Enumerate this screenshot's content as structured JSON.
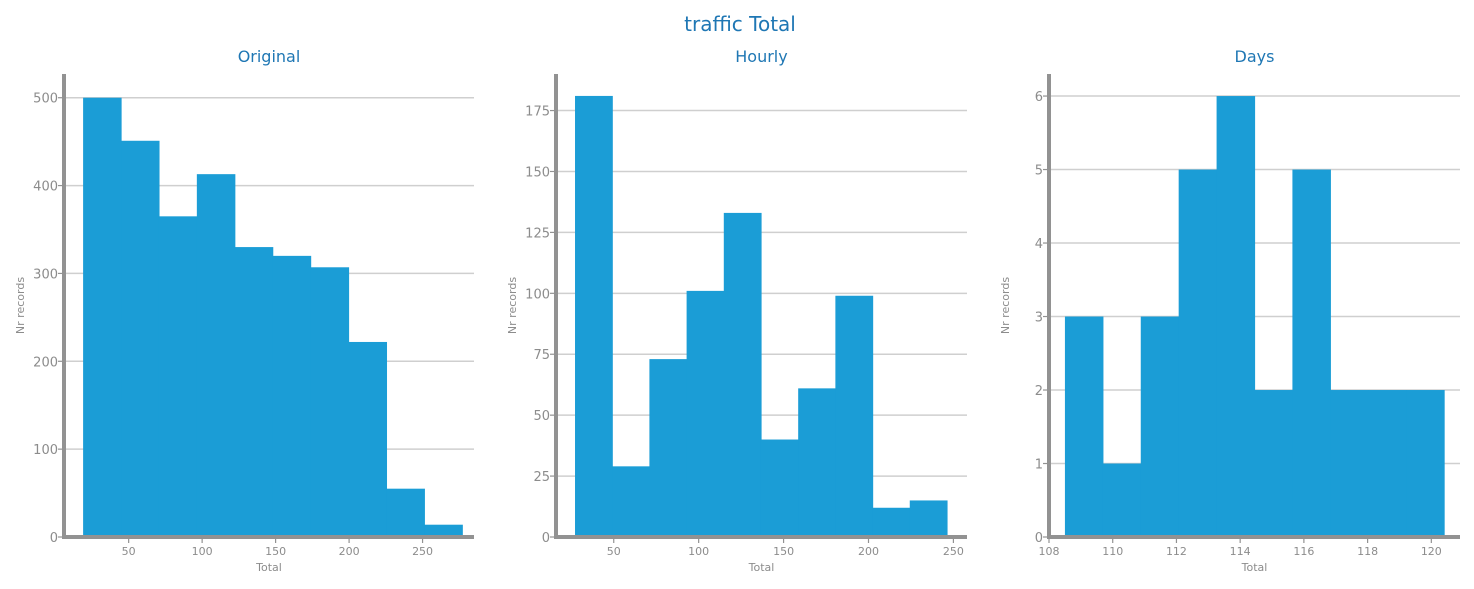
{
  "figure": {
    "title": "traffic Total"
  },
  "colors": {
    "bar": "#1b9dd6",
    "title": "#1f77b4",
    "axis": "#929292",
    "grid": "#cfcfcf",
    "tick_text": "#8c8c8c"
  },
  "chart_data": [
    {
      "type": "bar",
      "title": "Original",
      "xlabel": "Total",
      "ylabel": "Nr records",
      "xlim": [
        6,
        285
      ],
      "ylim": [
        0,
        527
      ],
      "xticks": [
        50,
        100,
        150,
        200,
        250
      ],
      "yticks": [
        0,
        100,
        200,
        300,
        400,
        500
      ],
      "grid": "y",
      "bin_edges": [
        19,
        44.8,
        70.6,
        96.4,
        122.2,
        148,
        173.8,
        199.6,
        225.4,
        251.2,
        277
      ],
      "values": [
        500,
        451,
        365,
        413,
        330,
        320,
        307,
        222,
        55,
        14
      ]
    },
    {
      "type": "bar",
      "title": "Hourly",
      "xlabel": "Total",
      "ylabel": "Nr records",
      "xlim": [
        16,
        258
      ],
      "ylim": [
        0,
        190
      ],
      "xticks": [
        50,
        100,
        150,
        200,
        250
      ],
      "yticks": [
        0,
        25,
        50,
        75,
        100,
        125,
        150,
        175
      ],
      "grid": "y",
      "bin_edges": [
        27.2,
        49.1,
        71.0,
        92.9,
        114.8,
        136.7,
        158.6,
        180.5,
        202.4,
        224.3,
        246.2
      ],
      "values": [
        181,
        29,
        73,
        101,
        133,
        40,
        61,
        99,
        12,
        15
      ]
    },
    {
      "type": "bar",
      "title": "Days",
      "xlabel": "Total",
      "ylabel": "Nr records",
      "xlim": [
        108,
        120.9
      ],
      "ylim": [
        0,
        6.3
      ],
      "xticks": [
        108,
        110,
        112,
        114,
        116,
        118,
        120
      ],
      "yticks": [
        0,
        1,
        2,
        3,
        4,
        5,
        6
      ],
      "grid": "y",
      "bin_edges": [
        108.5,
        109.69,
        110.88,
        112.07,
        113.26,
        114.45,
        115.64,
        116.83,
        118.02,
        119.21,
        120.4
      ],
      "values": [
        3,
        1,
        3,
        5,
        6,
        2,
        5,
        2,
        2,
        2
      ]
    }
  ]
}
